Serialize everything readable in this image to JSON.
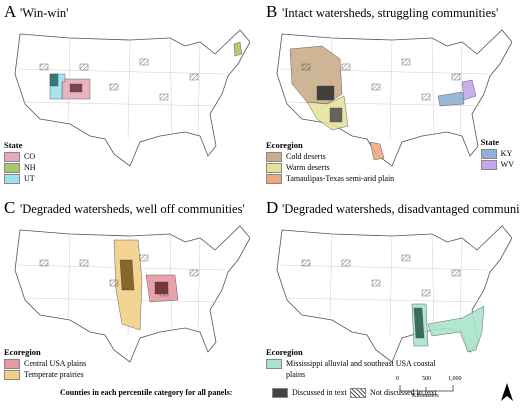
{
  "panels": [
    {
      "letter": "A",
      "title": "'Win-win'",
      "legends": [
        {
          "title": "State",
          "items": [
            "CO",
            "NH",
            "UT"
          ]
        }
      ]
    },
    {
      "letter": "B",
      "title": "'Intact watersheds, struggling communities'",
      "legends": [
        {
          "title": "Ecoregion",
          "items": [
            "Cold deserts",
            "Warm deserts",
            "Tamaulipas-Texas semi-arid plain"
          ]
        },
        {
          "title": "State",
          "items": [
            "KY",
            "WV"
          ]
        }
      ]
    },
    {
      "letter": "C",
      "title": "'Degraded watersheds, well off communities'",
      "legends": [
        {
          "title": "Ecoregion",
          "items": [
            "Central USA plains",
            "Temperate prairies"
          ]
        }
      ]
    },
    {
      "letter": "D",
      "title": "'Degraded watersheds, disadvantaged communities'",
      "legends": [
        {
          "title": "Ecoregion",
          "items": [
            "Mississippi alluvial and southeast USA coastal plains"
          ]
        }
      ]
    }
  ],
  "footer": {
    "label": "Counties in each percentile category for all panels:",
    "discussed": "Discussed in text",
    "not_discussed": "Not discussed in text",
    "scale": {
      "ticks": [
        "0",
        "500",
        "1,000"
      ],
      "unit": "Kilometers"
    }
  }
}
